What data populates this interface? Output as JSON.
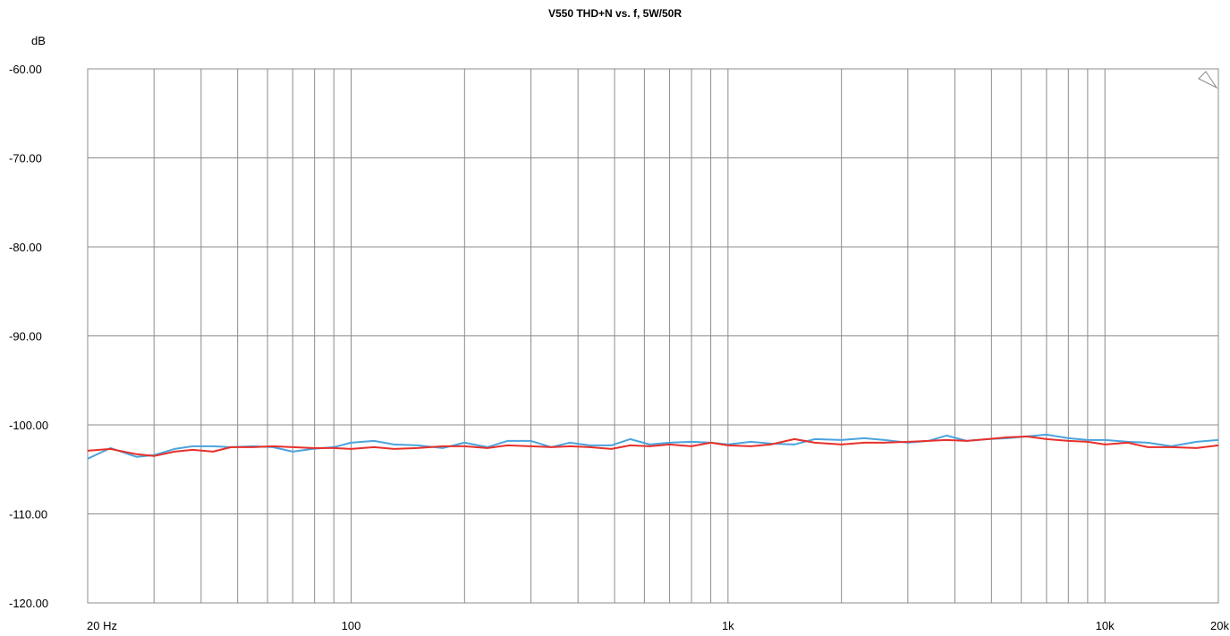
{
  "chart_data": {
    "type": "line",
    "title": "V550 THD+N vs. f, 5W/50R",
    "ylabel": "dB",
    "xlabel": "",
    "x_scale": "log",
    "xlim": [
      20,
      20000
    ],
    "ylim": [
      -120,
      -60
    ],
    "grid": true,
    "yticks": [
      -60,
      -70,
      -80,
      -90,
      -100,
      -110,
      -120
    ],
    "ytick_labels": [
      "-60.00",
      "-70.00",
      "-80.00",
      "-90.00",
      "-100.00",
      "-110.00",
      "-120.00"
    ],
    "xticks": [
      20,
      100,
      1000,
      10000,
      20000
    ],
    "xtick_labels": [
      "20 Hz",
      "100",
      "1k",
      "10k",
      "20k"
    ],
    "x_gridlines": [
      20,
      30,
      40,
      50,
      60,
      70,
      80,
      90,
      100,
      200,
      300,
      400,
      500,
      600,
      700,
      800,
      900,
      1000,
      2000,
      3000,
      4000,
      5000,
      6000,
      7000,
      8000,
      9000,
      10000,
      20000
    ],
    "series": [
      {
        "color": "#4ba3dd",
        "x": [
          20,
          23,
          27,
          30,
          34,
          38,
          43,
          48,
          55,
          62,
          70,
          79,
          90,
          100,
          115,
          130,
          150,
          175,
          200,
          230,
          260,
          300,
          340,
          380,
          430,
          490,
          550,
          620,
          700,
          800,
          900,
          1000,
          1150,
          1300,
          1500,
          1700,
          2000,
          2300,
          2600,
          3000,
          3400,
          3800,
          4300,
          4900,
          5500,
          6200,
          7000,
          8000,
          9000,
          10000,
          11500,
          13000,
          15000,
          17500,
          20000
        ],
        "y": [
          -103.8,
          -102.6,
          -103.6,
          -103.4,
          -102.7,
          -102.4,
          -102.4,
          -102.5,
          -102.4,
          -102.5,
          -103.0,
          -102.7,
          -102.5,
          -102.0,
          -101.8,
          -102.2,
          -102.3,
          -102.6,
          -102.0,
          -102.5,
          -101.8,
          -101.8,
          -102.5,
          -102.0,
          -102.3,
          -102.3,
          -101.6,
          -102.2,
          -102.0,
          -101.9,
          -102.0,
          -102.2,
          -101.9,
          -102.1,
          -102.2,
          -101.6,
          -101.7,
          -101.5,
          -101.7,
          -102.0,
          -101.8,
          -101.2,
          -101.8,
          -101.6,
          -101.5,
          -101.3,
          -101.1,
          -101.5,
          -101.7,
          -101.7,
          -101.9,
          -102.0,
          -102.4,
          -101.9,
          -101.7
        ]
      },
      {
        "color": "#e8302a",
        "x": [
          20,
          23,
          27,
          30,
          34,
          38,
          43,
          48,
          55,
          62,
          70,
          79,
          90,
          100,
          115,
          130,
          150,
          175,
          200,
          230,
          260,
          300,
          340,
          380,
          430,
          490,
          550,
          620,
          700,
          800,
          900,
          1000,
          1150,
          1300,
          1500,
          1700,
          2000,
          2300,
          2600,
          3000,
          3400,
          3800,
          4300,
          4900,
          5500,
          6200,
          7000,
          8000,
          9000,
          10000,
          11500,
          13000,
          15000,
          17500,
          20000
        ],
        "y": [
          -102.9,
          -102.7,
          -103.3,
          -103.5,
          -103.0,
          -102.8,
          -103.0,
          -102.5,
          -102.5,
          -102.4,
          -102.5,
          -102.6,
          -102.6,
          -102.7,
          -102.5,
          -102.7,
          -102.6,
          -102.4,
          -102.4,
          -102.6,
          -102.3,
          -102.4,
          -102.5,
          -102.4,
          -102.5,
          -102.7,
          -102.3,
          -102.4,
          -102.2,
          -102.4,
          -102.0,
          -102.3,
          -102.4,
          -102.2,
          -101.6,
          -102.0,
          -102.2,
          -102.0,
          -102.0,
          -101.9,
          -101.8,
          -101.7,
          -101.8,
          -101.6,
          -101.4,
          -101.3,
          -101.6,
          -101.8,
          -101.9,
          -102.2,
          -102.0,
          -102.5,
          -102.5,
          -102.6,
          -102.3
        ]
      }
    ]
  }
}
